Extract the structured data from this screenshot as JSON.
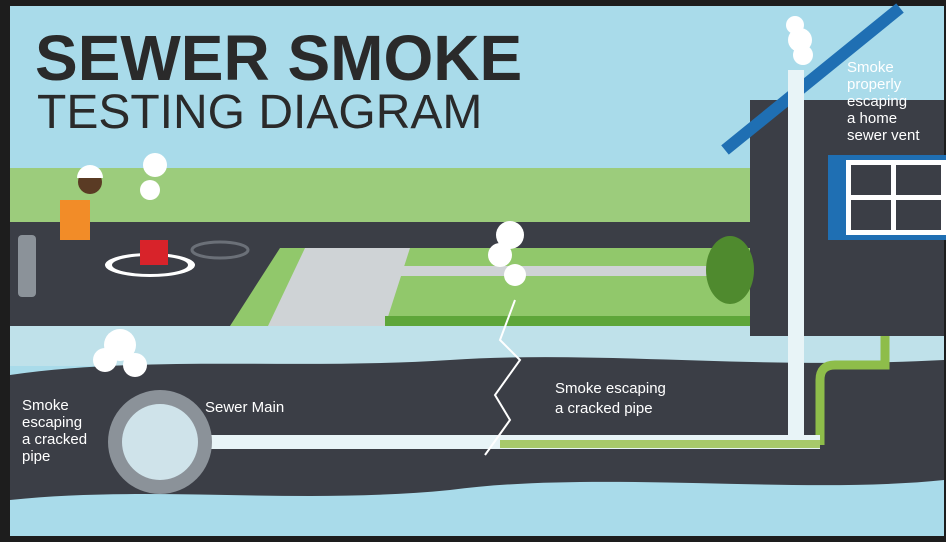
{
  "header": {
    "title": "SEWER SMOKE",
    "subtitle": "TESTING DIAGRAM"
  },
  "labels": {
    "vent": [
      "Smoke",
      "properly",
      "escaping",
      "a home",
      "sewer vent"
    ],
    "left_crack": [
      "Smoke",
      "escaping",
      "a cracked",
      "pipe"
    ],
    "sewer_main": "Sewer Main",
    "middle_crack": [
      "Smoke escaping",
      "a cracked pipe"
    ]
  }
}
